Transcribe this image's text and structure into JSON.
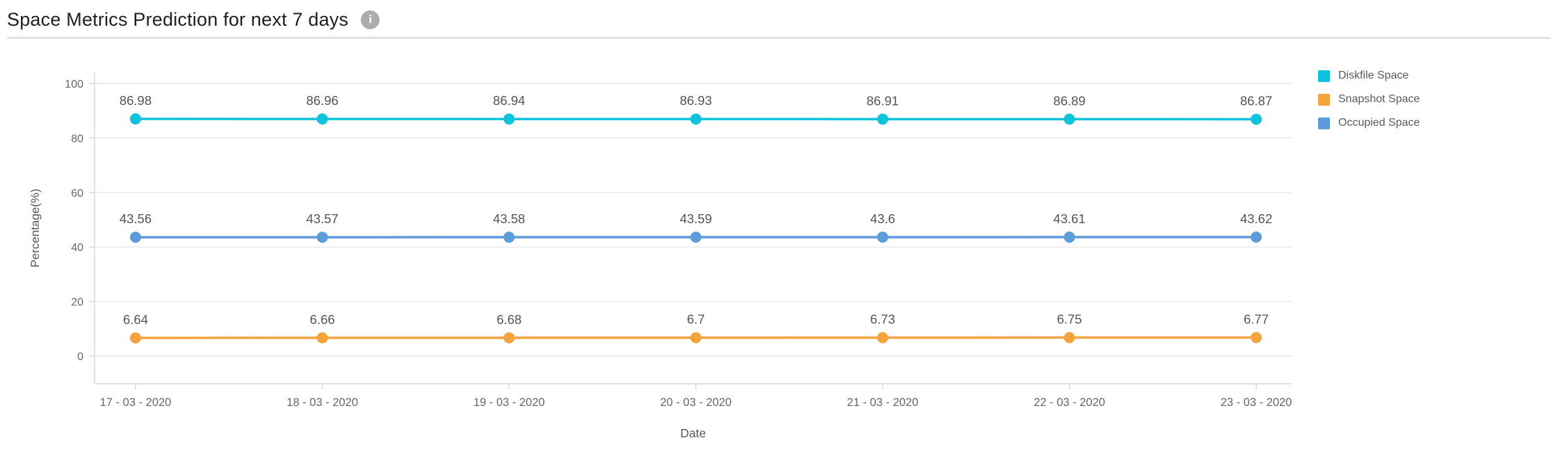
{
  "header": {
    "title": "Space Metrics Prediction for next 7 days",
    "info_icon_glyph": "i"
  },
  "chart_data": {
    "type": "line",
    "title": "Space Metrics Prediction for next 7 days",
    "xlabel": "Date",
    "ylabel": "Percentage(%)",
    "ylim": [
      0,
      100
    ],
    "y_ticks": [
      0,
      20,
      40,
      60,
      80,
      100
    ],
    "grid": "horizontal",
    "data_labels": true,
    "legend_position": "right",
    "categories": [
      "17 - 03 - 2020",
      "18 - 03 - 2020",
      "19 - 03 - 2020",
      "20 - 03 - 2020",
      "21 - 03 - 2020",
      "22 - 03 - 2020",
      "23 - 03 - 2020"
    ],
    "series": [
      {
        "name": "Diskfile Space",
        "color": "#0fc3de",
        "values": [
          86.98,
          86.96,
          86.94,
          86.93,
          86.91,
          86.89,
          86.87
        ]
      },
      {
        "name": "Snapshot Space",
        "color": "#f5a33c",
        "values": [
          6.64,
          6.66,
          6.68,
          6.7,
          6.73,
          6.75,
          6.77
        ]
      },
      {
        "name": "Occupied Space",
        "color": "#5d9cdb",
        "values": [
          43.56,
          43.57,
          43.58,
          43.59,
          43.6,
          43.61,
          43.62
        ]
      }
    ]
  },
  "colors": {
    "grid_line": "#e9e9e9",
    "axis_line": "#d8d8d8",
    "tick_label": "#666666",
    "axis_title": "#555555",
    "data_label": "#545454"
  }
}
